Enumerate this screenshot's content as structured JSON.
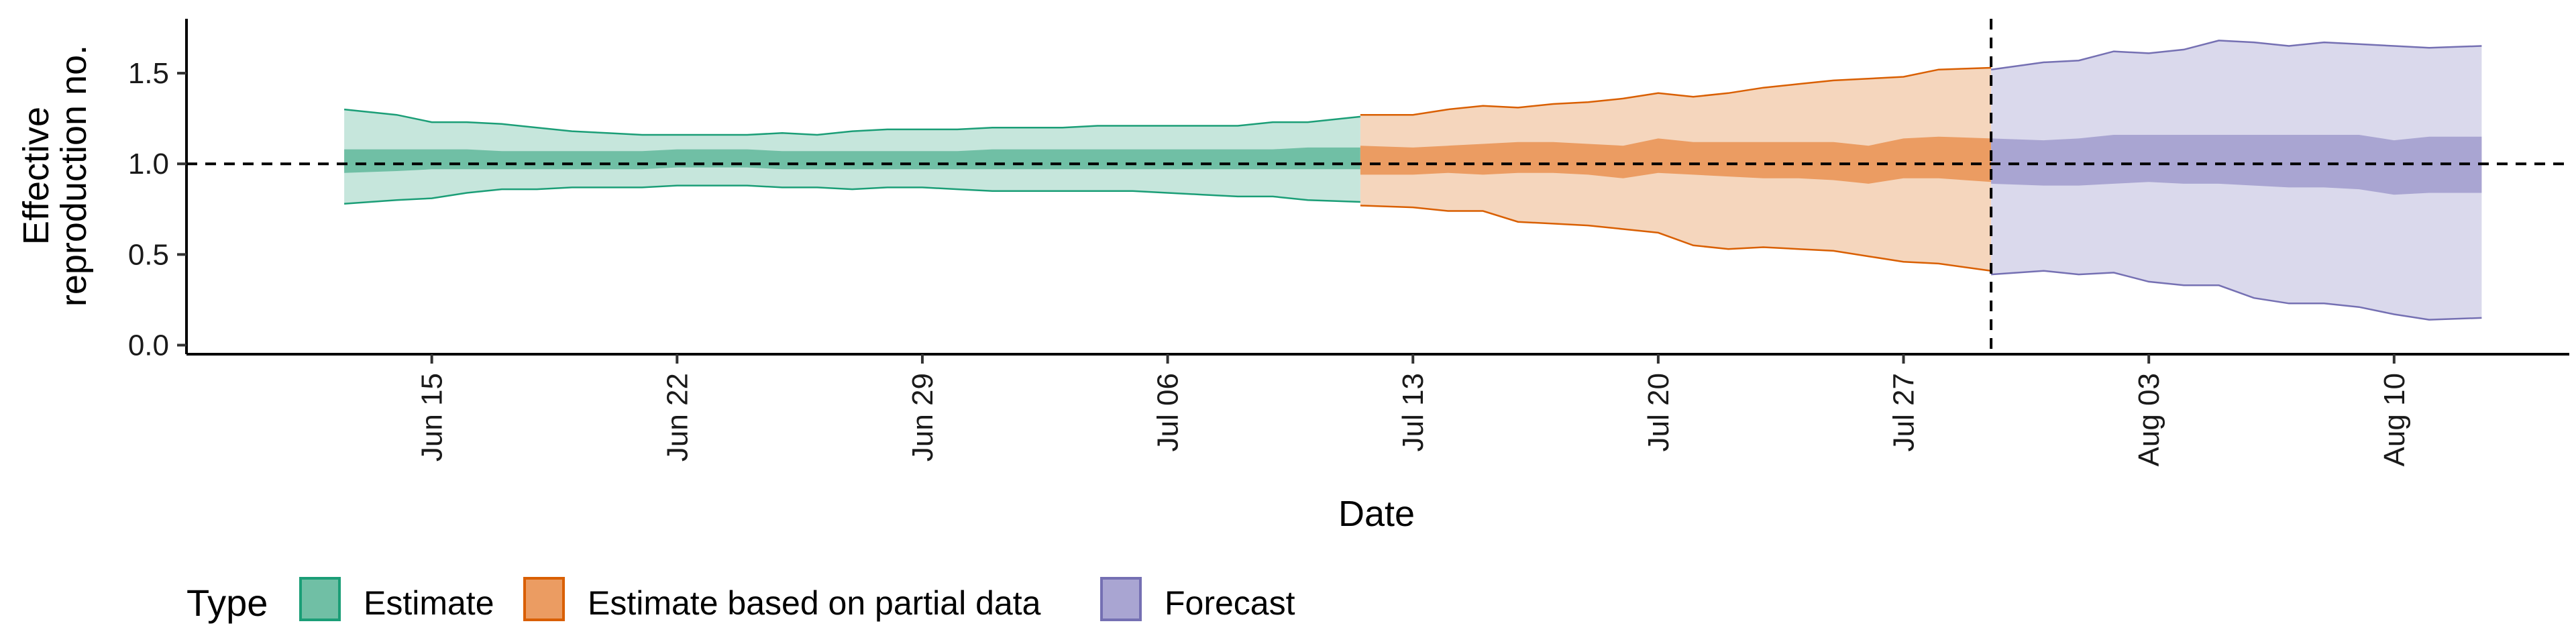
{
  "chart_data": {
    "type": "area",
    "title": "",
    "xlabel": "Date",
    "ylabel": [
      "Effective",
      "reproduction no."
    ],
    "ylim": [
      -0.05,
      1.8
    ],
    "xlim": [
      "2021-06-08",
      "2021-08-15"
    ],
    "x_ticks": [
      {
        "date": "2021-06-15",
        "label": "Jun 15"
      },
      {
        "date": "2021-06-22",
        "label": "Jun 22"
      },
      {
        "date": "2021-06-29",
        "label": "Jun 29"
      },
      {
        "date": "2021-07-06",
        "label": "Jul 06"
      },
      {
        "date": "2021-07-13",
        "label": "Jul 13"
      },
      {
        "date": "2021-07-20",
        "label": "Jul 20"
      },
      {
        "date": "2021-07-27",
        "label": "Jul 27"
      },
      {
        "date": "2021-08-03",
        "label": "Aug 03"
      },
      {
        "date": "2021-08-10",
        "label": "Aug 10"
      }
    ],
    "y_ticks": [
      {
        "value": 0.0,
        "label": "0.0"
      },
      {
        "value": 0.5,
        "label": "0.5"
      },
      {
        "value": 1.0,
        "label": "1.0"
      },
      {
        "value": 1.5,
        "label": "1.5"
      }
    ],
    "reference_line": {
      "y": 1.0,
      "style": "dashed"
    },
    "vertical_line": {
      "x": "2021-07-29",
      "style": "dashed"
    },
    "legend": {
      "title": "Type",
      "position": "bottom",
      "items": [
        "Estimate",
        "Estimate based on partial data",
        "Forecast"
      ]
    },
    "series": [
      {
        "name": "Estimate",
        "color": "#1b9e77",
        "fill_outer": "#c6e6dc",
        "fill_inner": "#70bfa5",
        "points": [
          {
            "x": "2021-06-13",
            "lo90": 0.78,
            "lo50": 0.95,
            "hi50": 1.08,
            "hi90": 1.3
          },
          {
            "x": "2021-06-14",
            "lo90": 0.8,
            "lo50": 0.96,
            "hi50": 1.08,
            "hi90": 1.27
          },
          {
            "x": "2021-06-15",
            "lo90": 0.81,
            "lo50": 0.97,
            "hi50": 1.08,
            "hi90": 1.23
          },
          {
            "x": "2021-06-16",
            "lo90": 0.84,
            "lo50": 0.97,
            "hi50": 1.08,
            "hi90": 1.23
          },
          {
            "x": "2021-06-17",
            "lo90": 0.86,
            "lo50": 0.97,
            "hi50": 1.07,
            "hi90": 1.22
          },
          {
            "x": "2021-06-18",
            "lo90": 0.86,
            "lo50": 0.97,
            "hi50": 1.07,
            "hi90": 1.2
          },
          {
            "x": "2021-06-19",
            "lo90": 0.87,
            "lo50": 0.97,
            "hi50": 1.07,
            "hi90": 1.18
          },
          {
            "x": "2021-06-20",
            "lo90": 0.87,
            "lo50": 0.97,
            "hi50": 1.07,
            "hi90": 1.17
          },
          {
            "x": "2021-06-21",
            "lo90": 0.87,
            "lo50": 0.97,
            "hi50": 1.07,
            "hi90": 1.16
          },
          {
            "x": "2021-06-22",
            "lo90": 0.88,
            "lo50": 0.98,
            "hi50": 1.08,
            "hi90": 1.16
          },
          {
            "x": "2021-06-23",
            "lo90": 0.88,
            "lo50": 0.98,
            "hi50": 1.08,
            "hi90": 1.16
          },
          {
            "x": "2021-06-24",
            "lo90": 0.88,
            "lo50": 0.98,
            "hi50": 1.08,
            "hi90": 1.16
          },
          {
            "x": "2021-06-25",
            "lo90": 0.87,
            "lo50": 0.97,
            "hi50": 1.07,
            "hi90": 1.17
          },
          {
            "x": "2021-06-26",
            "lo90": 0.87,
            "lo50": 0.97,
            "hi50": 1.07,
            "hi90": 1.16
          },
          {
            "x": "2021-06-27",
            "lo90": 0.86,
            "lo50": 0.97,
            "hi50": 1.07,
            "hi90": 1.18
          },
          {
            "x": "2021-06-28",
            "lo90": 0.87,
            "lo50": 0.97,
            "hi50": 1.07,
            "hi90": 1.19
          },
          {
            "x": "2021-06-29",
            "lo90": 0.87,
            "lo50": 0.97,
            "hi50": 1.07,
            "hi90": 1.19
          },
          {
            "x": "2021-06-30",
            "lo90": 0.86,
            "lo50": 0.97,
            "hi50": 1.07,
            "hi90": 1.19
          },
          {
            "x": "2021-07-01",
            "lo90": 0.85,
            "lo50": 0.97,
            "hi50": 1.08,
            "hi90": 1.2
          },
          {
            "x": "2021-07-02",
            "lo90": 0.85,
            "lo50": 0.97,
            "hi50": 1.08,
            "hi90": 1.2
          },
          {
            "x": "2021-07-03",
            "lo90": 0.85,
            "lo50": 0.97,
            "hi50": 1.08,
            "hi90": 1.2
          },
          {
            "x": "2021-07-04",
            "lo90": 0.85,
            "lo50": 0.97,
            "hi50": 1.08,
            "hi90": 1.21
          },
          {
            "x": "2021-07-05",
            "lo90": 0.85,
            "lo50": 0.97,
            "hi50": 1.08,
            "hi90": 1.21
          },
          {
            "x": "2021-07-06",
            "lo90": 0.84,
            "lo50": 0.97,
            "hi50": 1.08,
            "hi90": 1.21
          },
          {
            "x": "2021-07-07",
            "lo90": 0.83,
            "lo50": 0.97,
            "hi50": 1.08,
            "hi90": 1.21
          },
          {
            "x": "2021-07-08",
            "lo90": 0.82,
            "lo50": 0.97,
            "hi50": 1.08,
            "hi90": 1.21
          },
          {
            "x": "2021-07-09",
            "lo90": 0.82,
            "lo50": 0.97,
            "hi50": 1.08,
            "hi90": 1.23
          },
          {
            "x": "2021-07-10",
            "lo90": 0.8,
            "lo50": 0.97,
            "hi50": 1.09,
            "hi90": 1.23
          },
          {
            "x": "2021-07-11",
            "lo90": 0.79,
            "lo50": 0.97,
            "hi50": 1.09,
            "hi90": 1.26
          }
        ]
      },
      {
        "name": "Estimate based on partial data",
        "color": "#d95f02",
        "fill_outer": "#f5d6bd",
        "fill_inner": "#eb9c62",
        "points": [
          {
            "x": "2021-07-12",
            "lo90": 0.77,
            "lo50": 0.94,
            "hi50": 1.1,
            "hi90": 1.27
          },
          {
            "x": "2021-07-13",
            "lo90": 0.76,
            "lo50": 0.94,
            "hi50": 1.09,
            "hi90": 1.27
          },
          {
            "x": "2021-07-14",
            "lo90": 0.74,
            "lo50": 0.95,
            "hi50": 1.1,
            "hi90": 1.3
          },
          {
            "x": "2021-07-15",
            "lo90": 0.74,
            "lo50": 0.94,
            "hi50": 1.11,
            "hi90": 1.32
          },
          {
            "x": "2021-07-16",
            "lo90": 0.68,
            "lo50": 0.95,
            "hi50": 1.12,
            "hi90": 1.31
          },
          {
            "x": "2021-07-17",
            "lo90": 0.67,
            "lo50": 0.95,
            "hi50": 1.12,
            "hi90": 1.33
          },
          {
            "x": "2021-07-18",
            "lo90": 0.66,
            "lo50": 0.94,
            "hi50": 1.11,
            "hi90": 1.34
          },
          {
            "x": "2021-07-19",
            "lo90": 0.64,
            "lo50": 0.92,
            "hi50": 1.1,
            "hi90": 1.36
          },
          {
            "x": "2021-07-20",
            "lo90": 0.62,
            "lo50": 0.95,
            "hi50": 1.14,
            "hi90": 1.39
          },
          {
            "x": "2021-07-21",
            "lo90": 0.55,
            "lo50": 0.94,
            "hi50": 1.12,
            "hi90": 1.37
          },
          {
            "x": "2021-07-22",
            "lo90": 0.53,
            "lo50": 0.93,
            "hi50": 1.12,
            "hi90": 1.39
          },
          {
            "x": "2021-07-23",
            "lo90": 0.54,
            "lo50": 0.92,
            "hi50": 1.12,
            "hi90": 1.42
          },
          {
            "x": "2021-07-24",
            "lo90": 0.53,
            "lo50": 0.92,
            "hi50": 1.12,
            "hi90": 1.44
          },
          {
            "x": "2021-07-25",
            "lo90": 0.52,
            "lo50": 0.91,
            "hi50": 1.12,
            "hi90": 1.46
          },
          {
            "x": "2021-07-26",
            "lo90": 0.49,
            "lo50": 0.89,
            "hi50": 1.1,
            "hi90": 1.47
          },
          {
            "x": "2021-07-27",
            "lo90": 0.46,
            "lo50": 0.92,
            "hi50": 1.14,
            "hi90": 1.48
          },
          {
            "x": "2021-07-28",
            "lo90": 0.45,
            "lo50": 0.92,
            "hi50": 1.15,
            "hi90": 1.52
          },
          {
            "x": "2021-07-29",
            "lo90": 0.41,
            "lo50": 0.9,
            "hi50": 1.14,
            "hi90": 1.53
          }
        ]
      },
      {
        "name": "Forecast",
        "color": "#7570b3",
        "fill_outer": "#dad9ec",
        "fill_inner": "#a9a5d2",
        "points": [
          {
            "x": "2021-07-30",
            "lo90": 0.39,
            "lo50": 0.89,
            "hi50": 1.14,
            "hi90": 1.52
          },
          {
            "x": "2021-07-31",
            "lo90": 0.41,
            "lo50": 0.88,
            "hi50": 1.13,
            "hi90": 1.56
          },
          {
            "x": "2021-08-01",
            "lo90": 0.39,
            "lo50": 0.88,
            "hi50": 1.14,
            "hi90": 1.57
          },
          {
            "x": "2021-08-02",
            "lo90": 0.4,
            "lo50": 0.89,
            "hi50": 1.16,
            "hi90": 1.62
          },
          {
            "x": "2021-08-03",
            "lo90": 0.35,
            "lo50": 0.9,
            "hi50": 1.16,
            "hi90": 1.61
          },
          {
            "x": "2021-08-04",
            "lo90": 0.33,
            "lo50": 0.89,
            "hi50": 1.16,
            "hi90": 1.63
          },
          {
            "x": "2021-08-05",
            "lo90": 0.33,
            "lo50": 0.89,
            "hi50": 1.16,
            "hi90": 1.68
          },
          {
            "x": "2021-08-06",
            "lo90": 0.26,
            "lo50": 0.88,
            "hi50": 1.16,
            "hi90": 1.67
          },
          {
            "x": "2021-08-07",
            "lo90": 0.23,
            "lo50": 0.87,
            "hi50": 1.16,
            "hi90": 1.65
          },
          {
            "x": "2021-08-08",
            "lo90": 0.23,
            "lo50": 0.87,
            "hi50": 1.16,
            "hi90": 1.67
          },
          {
            "x": "2021-08-09",
            "lo90": 0.21,
            "lo50": 0.86,
            "hi50": 1.16,
            "hi90": 1.66
          },
          {
            "x": "2021-08-10",
            "lo90": 0.17,
            "lo50": 0.83,
            "hi50": 1.13,
            "hi90": 1.65
          },
          {
            "x": "2021-08-11",
            "lo90": 0.14,
            "lo50": 0.84,
            "hi50": 1.15,
            "hi90": 1.64
          },
          {
            "x": "2021-08-12",
            "lo90": 0.15,
            "lo50": 0.84,
            "hi50": 1.15,
            "hi90": 1.65
          }
        ]
      }
    ]
  }
}
